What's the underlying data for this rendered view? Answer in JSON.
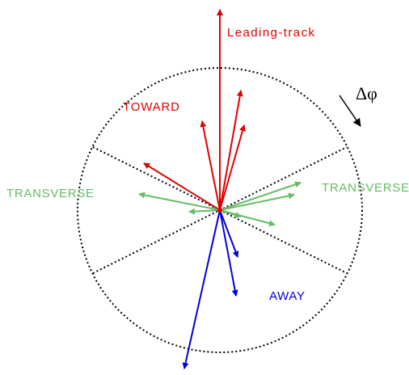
{
  "labels": {
    "leading": "Leading-track",
    "toward": "TOWARD",
    "transverse_left": "TRANSVERSE",
    "transverse_right": "TRANSVERSE",
    "away": "AWAY",
    "delta_phi": "Δφ"
  }
}
